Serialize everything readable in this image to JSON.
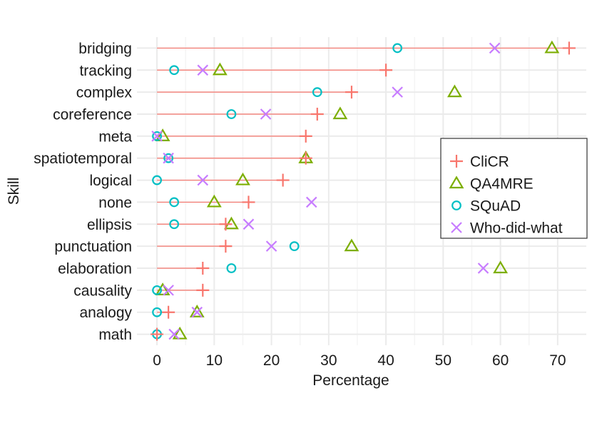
{
  "chart_data": {
    "type": "scatter",
    "orientation": "horizontal",
    "xlabel": "Percentage",
    "ylabel": "Skill",
    "xlim": [
      -3.5,
      75
    ],
    "xticks": [
      0,
      10,
      20,
      30,
      40,
      50,
      60,
      70
    ],
    "grid": true,
    "legend_position": "right",
    "categories": [
      "bridging",
      "tracking",
      "complex",
      "coreference",
      "meta",
      "spatiotemporal",
      "logical",
      "none",
      "ellipsis",
      "punctuation",
      "elaboration",
      "causality",
      "analogy",
      "math"
    ],
    "series": [
      {
        "name": "CliCR",
        "marker": "plus",
        "color": "#F8766D",
        "values": [
          72,
          40,
          34,
          28,
          26,
          26,
          22,
          16,
          12,
          12,
          8,
          8,
          2,
          0
        ]
      },
      {
        "name": "QA4MRE",
        "marker": "triangle",
        "color": "#7CAE00",
        "values": [
          69,
          11,
          52,
          32,
          1,
          26,
          15,
          10,
          13,
          34,
          60,
          1,
          7,
          4
        ]
      },
      {
        "name": "SQuAD",
        "marker": "circle",
        "color": "#00BFC4",
        "values": [
          42,
          3,
          28,
          13,
          0,
          2,
          0,
          3,
          3,
          24,
          13,
          0,
          0,
          0
        ]
      },
      {
        "name": "Who-did-what",
        "marker": "cross",
        "color": "#C77CFF",
        "values": [
          59,
          8,
          42,
          19,
          0,
          2,
          8,
          27,
          16,
          20,
          57,
          2,
          7,
          3
        ]
      }
    ],
    "stem_series": "CliCR"
  }
}
